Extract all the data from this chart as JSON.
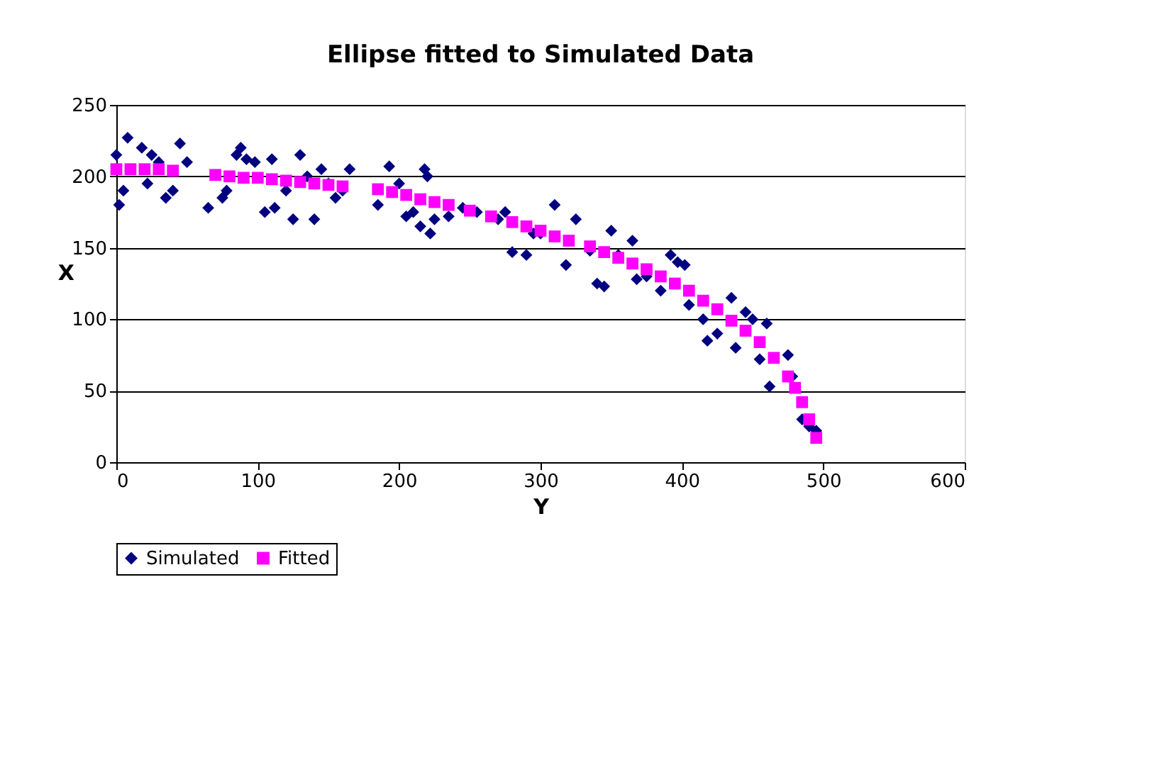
{
  "chart_data": {
    "type": "scatter",
    "title": "Ellipse fitted to Simulated Data",
    "xlabel": "Y",
    "ylabel": "X",
    "xlim": [
      0,
      600
    ],
    "xticks": [
      0,
      100,
      200,
      300,
      400,
      500,
      600
    ],
    "ylim": [
      0,
      250
    ],
    "yticks": [
      0,
      50,
      100,
      150,
      200,
      250
    ],
    "grid": "y",
    "legend": "bottom",
    "series": [
      {
        "name": "Simulated",
        "color": "#000080",
        "marker": "diamond",
        "x": [
          0,
          2,
          5,
          8,
          18,
          22,
          25,
          30,
          35,
          40,
          45,
          50,
          65,
          75,
          78,
          85,
          88,
          92,
          98,
          105,
          110,
          112,
          120,
          125,
          130,
          135,
          140,
          145,
          150,
          155,
          160,
          165,
          185,
          193,
          200,
          205,
          210,
          215,
          218,
          220,
          222,
          225,
          235,
          245,
          255,
          270,
          275,
          280,
          290,
          295,
          300,
          310,
          318,
          325,
          335,
          340,
          345,
          350,
          355,
          365,
          368,
          375,
          385,
          392,
          397,
          402,
          405,
          415,
          418,
          425,
          435,
          438,
          445,
          450,
          455,
          460,
          462,
          475,
          478,
          485,
          490,
          495
        ],
        "values": [
          215,
          180,
          190,
          227,
          220,
          195,
          215,
          210,
          185,
          190,
          223,
          210,
          178,
          185,
          190,
          215,
          220,
          212,
          210,
          175,
          212,
          178,
          190,
          170,
          215,
          200,
          170,
          205,
          195,
          185,
          190,
          205,
          180,
          207,
          195,
          172,
          175,
          165,
          205,
          200,
          160,
          170,
          172,
          178,
          175,
          170,
          175,
          147,
          145,
          160,
          160,
          180,
          138,
          170,
          148,
          125,
          123,
          162,
          145,
          155,
          128,
          130,
          120,
          145,
          140,
          138,
          110,
          100,
          85,
          90,
          115,
          80,
          105,
          100,
          72,
          97,
          53,
          75,
          60,
          30,
          25,
          22
        ]
      },
      {
        "name": "Fitted",
        "color": "#ff00ff",
        "marker": "square",
        "x": [
          0,
          10,
          20,
          30,
          40,
          70,
          80,
          90,
          100,
          110,
          120,
          130,
          140,
          150,
          160,
          185,
          195,
          205,
          215,
          225,
          235,
          250,
          265,
          280,
          290,
          300,
          310,
          320,
          335,
          345,
          355,
          365,
          375,
          385,
          395,
          405,
          415,
          425,
          435,
          445,
          455,
          465,
          475,
          480,
          485,
          490,
          495
        ],
        "values": [
          205,
          205,
          205,
          205,
          204,
          201,
          200,
          199,
          199,
          198,
          197,
          196,
          195,
          194,
          193,
          191,
          189,
          187,
          184,
          182,
          180,
          176,
          172,
          168,
          165,
          162,
          158,
          155,
          151,
          147,
          143,
          139,
          135,
          130,
          125,
          120,
          113,
          107,
          99,
          92,
          84,
          73,
          60,
          52,
          42,
          30,
          17
        ]
      }
    ]
  }
}
